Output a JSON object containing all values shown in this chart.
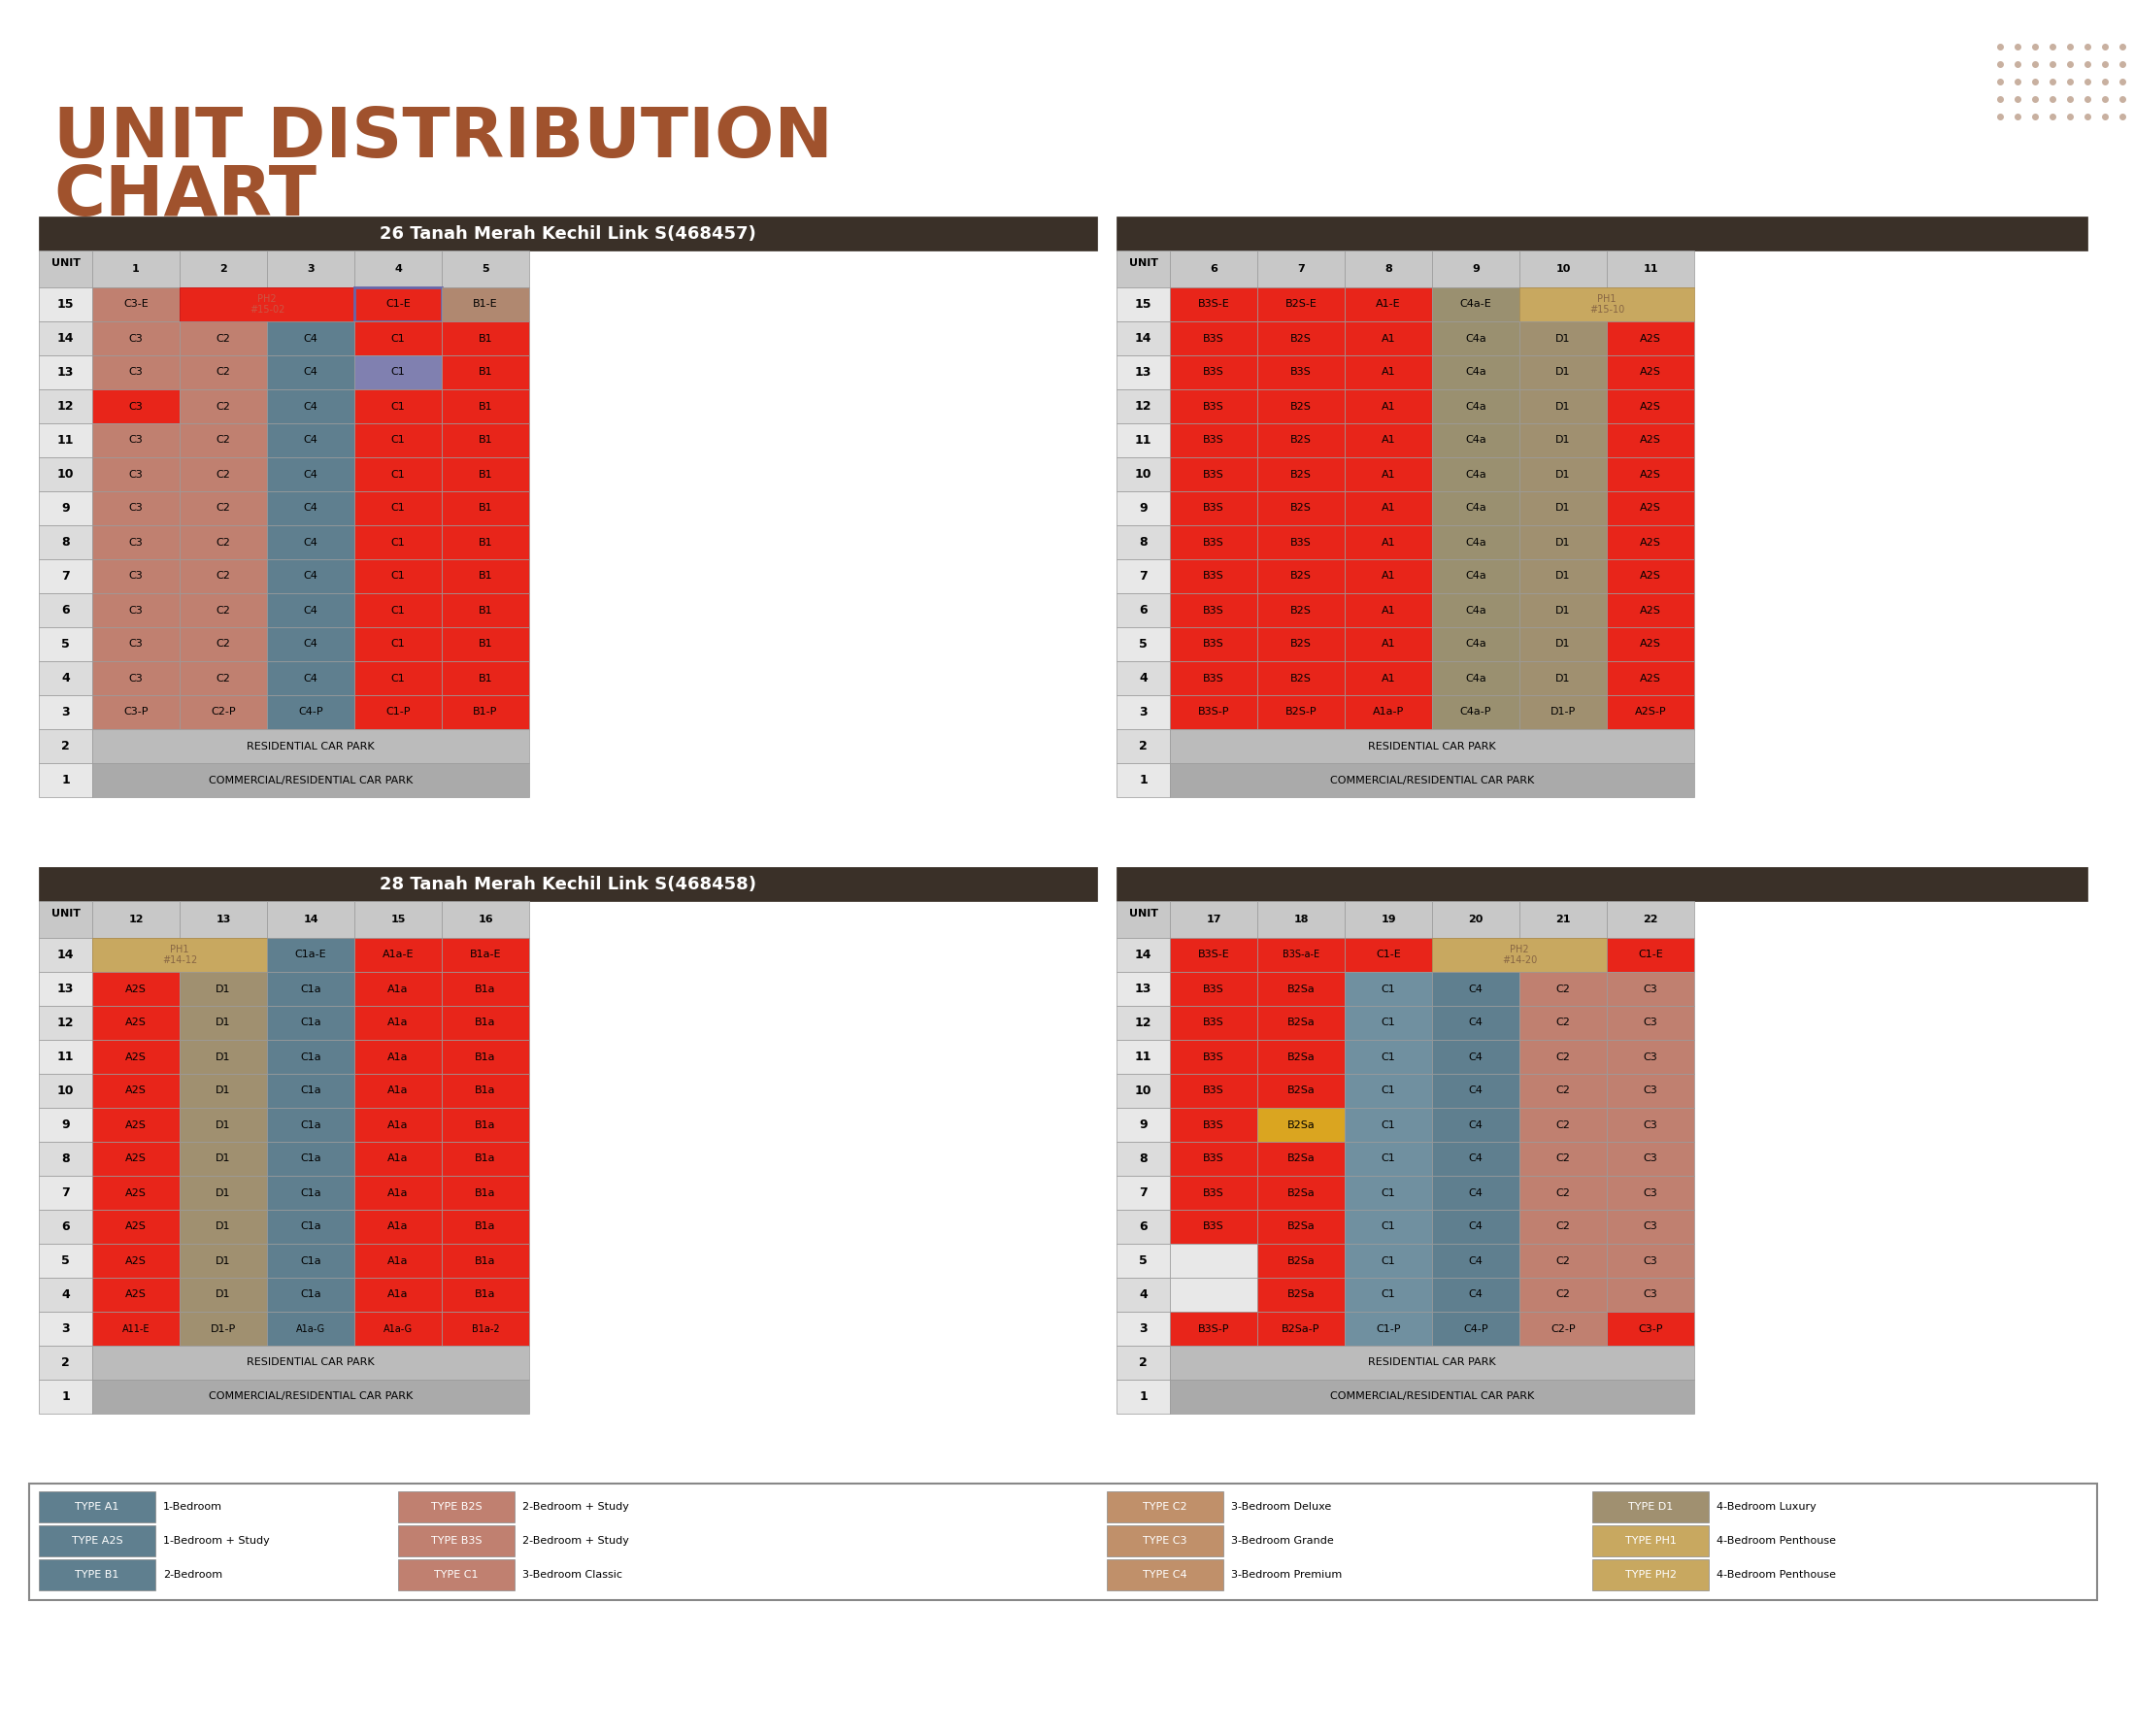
{
  "title": "UNIT DISTRIBUTION\nCHART",
  "title_color": "#A0522D",
  "bg_color": "#FFFFFF",
  "table1_title": "26 Tanah Merah Kechil Link S(468457)",
  "table2_title": "28 Tanah Merah Kechil Link S(468458)",
  "table_header_bg": "#3B3228",
  "table_header_color": "#FFFFFF",
  "col_header_bg": "#D3D3D3",
  "row_header_bg": "#D3D3D3",
  "alt_row_bg": "#E8E8E8",
  "colors": {
    "C3": "#C08070",
    "C2": "#C08070",
    "C4": "#708090",
    "C1": "#FF2020",
    "B1": "#FF2020",
    "C3-E": "#C08070",
    "PH2_red": "#FF2020",
    "C1-E_blue": "#9090C0",
    "B1-E": "#B08060",
    "C4-P": "#708090",
    "C3-P": "#C08070",
    "C2-P": "#C08070",
    "C1-P": "#FF2020",
    "B1-P": "#FF2020",
    "RESIDENTIAL": "#CCCCCC",
    "COMMERCIAL": "#CCCCCC",
    "B3S-E": "#FF2020",
    "B2S-E": "#FF2020",
    "A1-E": "#FF2020",
    "C4a-E": "#B0A080",
    "PH1_gold": "#C8A870",
    "B3S": "#FF2020",
    "B2S": "#FF2020",
    "A1": "#FF2020",
    "C4a": "#B0A080",
    "D1": "#B0A080",
    "A2S": "#FF2020",
    "B3S-P": "#FF2020",
    "B2S-P": "#FF2020",
    "A1a-P": "#FF2020",
    "D1-P": "#B0A080",
    "A2S-P": "#FF2020",
    "A1a-E": "#FF2020",
    "B1a-E": "#FF2020",
    "A1a": "#FF2020",
    "B1a": "#FF2020",
    "C1a-E": "#708090",
    "C1a": "#708090",
    "A11-E": "#FF2020",
    "A11": "#FF2020",
    "B3S-a-E": "#FF2020",
    "B2Sa": "#DAA520",
    "C1-E_red": "#FF2020",
    "C4_red": "#FF2020",
    "C2_red": "#FF2020",
    "C3_red": "#FF2020",
    "white": "#FFFFFF",
    "gray": "#AAAAAA"
  },
  "legend": [
    {
      "type": "TYPE A1",
      "desc": "1-Bedroom",
      "color": "#708090"
    },
    {
      "type": "TYPE A2S",
      "desc": "1-Bedroom + Study",
      "color": "#708090"
    },
    {
      "type": "TYPE B1",
      "desc": "2-Bedroom",
      "color": "#708090"
    },
    {
      "type": "TYPE B2S",
      "desc": "2-Bedroom + Study",
      "color": "#C08070"
    },
    {
      "type": "TYPE B3S",
      "desc": "2-Bedroom + Study",
      "color": "#C08070"
    },
    {
      "type": "TYPE C1",
      "desc": "3-Bedroom Classic",
      "color": "#C08070"
    },
    {
      "type": "TYPE C2",
      "desc": "3-Bedroom Deluxe",
      "color": "#C08070"
    },
    {
      "type": "TYPE C3",
      "desc": "3-Bedroom Grande",
      "color": "#C08070"
    },
    {
      "type": "TYPE C4",
      "desc": "3-Bedroom Premium",
      "color": "#708090"
    },
    {
      "type": "TYPE D1",
      "desc": "4-Bedroom Luxury",
      "color": "#B0A080"
    },
    {
      "type": "TYPE PH1",
      "desc": "4-Bedroom Penthouse",
      "color": "#C8A870"
    },
    {
      "type": "TYPE PH2",
      "desc": "4-Bedroom Penthouse",
      "color": "#C8A870"
    }
  ]
}
